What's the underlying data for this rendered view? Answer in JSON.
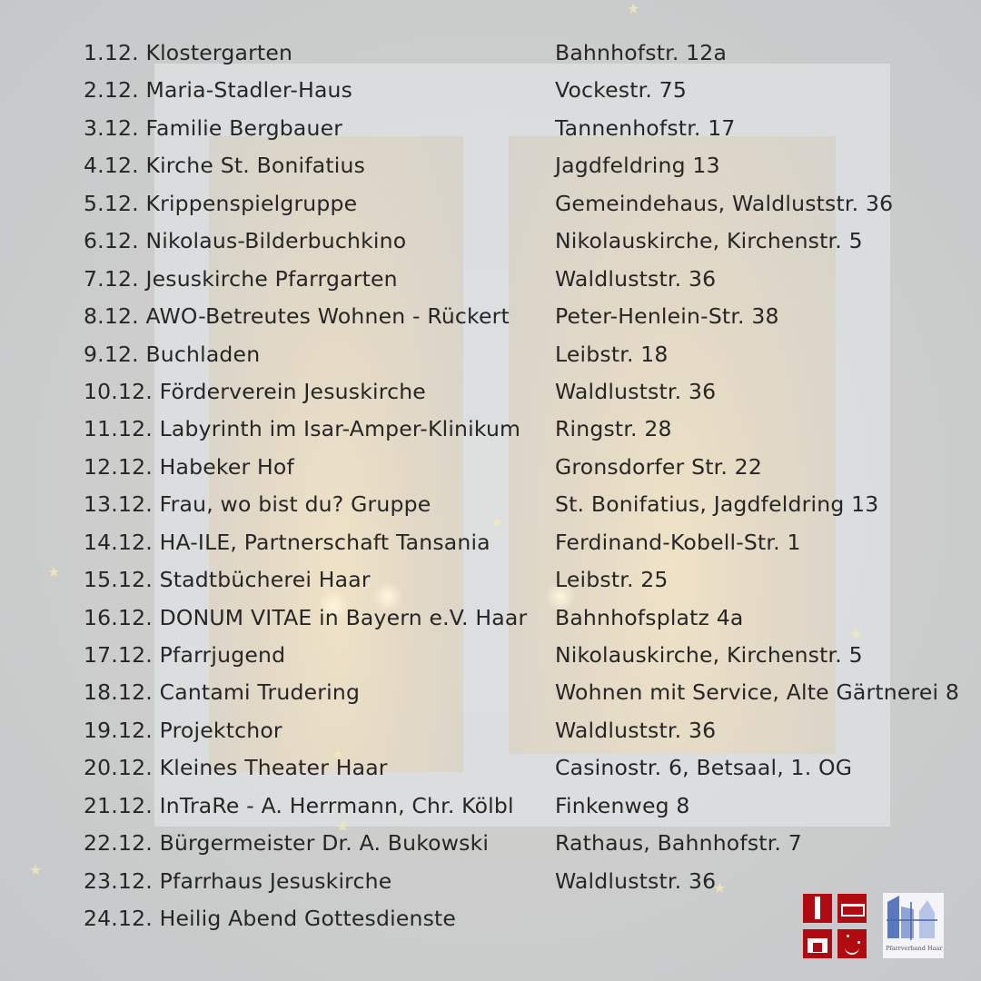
{
  "events": [
    {
      "date": "1.12.",
      "host": "Klostergarten",
      "place": "Bahnhofstr. 12a"
    },
    {
      "date": "2.12.",
      "host": "Maria-Stadler-Haus",
      "place": "Vockestr. 75"
    },
    {
      "date": "3.12.",
      "host": "Familie Bergbauer",
      "place": "Tannenhofstr. 17"
    },
    {
      "date": "4.12.",
      "host": "Kirche St. Bonifatius",
      "place": "Jagdfeldring 13"
    },
    {
      "date": "5.12.",
      "host": "Krippenspielgruppe",
      "place": "Gemeindehaus, Waldluststr. 36"
    },
    {
      "date": "6.12.",
      "host": "Nikolaus-Bilderbuchkino",
      "place": "Nikolauskirche, Kirchenstr. 5"
    },
    {
      "date": "7.12.",
      "host": "Jesuskirche Pfarrgarten",
      "place": "Waldluststr. 36"
    },
    {
      "date": "8.12.",
      "host": "AWO-Betreutes Wohnen - Rückert",
      "place": "Peter-Henlein-Str. 38"
    },
    {
      "date": "9.12.",
      "host": "Buchladen",
      "place": "Leibstr. 18"
    },
    {
      "date": "10.12.",
      "host": "Förderverein Jesuskirche",
      "place": "Waldluststr. 36"
    },
    {
      "date": "11.12.",
      "host": "Labyrinth im Isar-Amper-Klinikum",
      "place": "Ringstr. 28"
    },
    {
      "date": "12.12.",
      "host": "Habeker Hof",
      "place": "Gronsdorfer Str. 22"
    },
    {
      "date": "13.12.",
      "host": "Frau, wo bist du? Gruppe",
      "place": "St. Bonifatius, Jagdfeldring 13"
    },
    {
      "date": "14.12.",
      "host": "HA-ILE, Partnerschaft Tansania",
      "place": "Ferdinand-Kobell-Str. 1"
    },
    {
      "date": "15.12.",
      "host": "Stadtbücherei Haar",
      "place": "Leibstr. 25"
    },
    {
      "date": "16.12.",
      "host": "DONUM VITAE in Bayern e.V. Haar",
      "place": "Bahnhofsplatz 4a"
    },
    {
      "date": "17.12.",
      "host": "Pfarrjugend",
      "place": "Nikolauskirche, Kirchenstr. 5"
    },
    {
      "date": "18.12.",
      "host": "Cantami Trudering",
      "place": "Wohnen mit Service, Alte Gärtnerei 8"
    },
    {
      "date": "19.12.",
      "host": "Projektchor",
      "place": "Waldluststr. 36"
    },
    {
      "date": "20.12.",
      "host": "Kleines Theater Haar",
      "place": "Casinostr. 6, Betsaal, 1. OG"
    },
    {
      "date": "21.12.",
      "host": "InTraRe - A. Herrmann, Chr. Kölbl",
      "place": "Finkenweg 8"
    },
    {
      "date": "22.12.",
      "host": "Bürgermeister Dr. A. Bukowski",
      "place": "Rathaus, Bahnhofstr. 7"
    },
    {
      "date": "23.12.",
      "host": "Pfarrhaus Jesuskirche",
      "place": "Waldluststr. 36"
    },
    {
      "date": "24.12.",
      "host": "Heilig Abend Gottesdienste",
      "place": ""
    }
  ],
  "logo": {
    "text": "Pfarrverband Haar",
    "accent": "#b00a12",
    "blue": "#5a78c0"
  }
}
